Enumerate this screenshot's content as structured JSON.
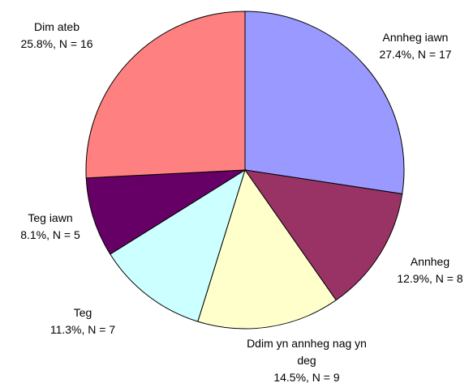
{
  "chart_data": {
    "type": "pie",
    "categories": [
      "Annheg iawn",
      "Annheg",
      "Ddim yn annheg nag yn deg",
      "Teg",
      "Teg iawn",
      "Dim ateb"
    ],
    "values": [
      27.4,
      12.9,
      14.5,
      11.3,
      8.1,
      25.8
    ],
    "value_labels": [
      "27.4%, N = 17",
      "12.9%, N = 8",
      "14.5%, N = 9",
      "11.3%, N = 7",
      "8.1%, N = 5",
      "25.8%, N = 16"
    ],
    "colors": [
      "#9999ff",
      "#993366",
      "#ffffcc",
      "#ccffff",
      "#660066",
      "#ff8080"
    ]
  }
}
